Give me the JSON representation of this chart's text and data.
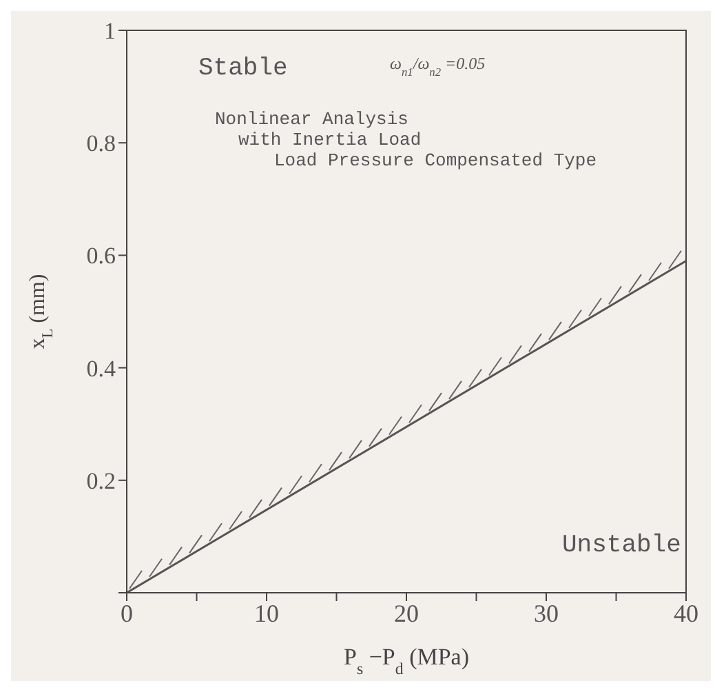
{
  "chart_data": {
    "type": "line",
    "xlabel": "P$_{s}$ −P$_{d}$  (MPa)",
    "ylabel": "x$_{L}$ (mm)",
    "x": [
      0,
      40
    ],
    "series": [
      {
        "color": "#555555",
        "values": [
          0,
          0.59
        ]
      }
    ],
    "xlim": [
      0,
      40
    ],
    "ylim": [
      0,
      1
    ],
    "xticks": [
      0,
      {
        "value": 5,
        "label": null
      },
      10,
      {
        "value": 15,
        "label": null
      },
      20,
      {
        "value": 25,
        "label": null
      },
      30,
      {
        "value": 35,
        "label": null
      },
      40
    ],
    "yticks": [
      {
        "value": 0,
        "label": null
      },
      0.2,
      0.4,
      0.6,
      0.8,
      1
    ],
    "annotations": [
      "Stable",
      "Unstable",
      "ω$_{n1}$/ω$_{n2}$ =0.05",
      "Nonlinear Analysis",
      "with Inertia Load",
      "Load Pressure Compensated Type"
    ],
    "grid": false,
    "marker": "none",
    "line_style": "solid"
  }
}
